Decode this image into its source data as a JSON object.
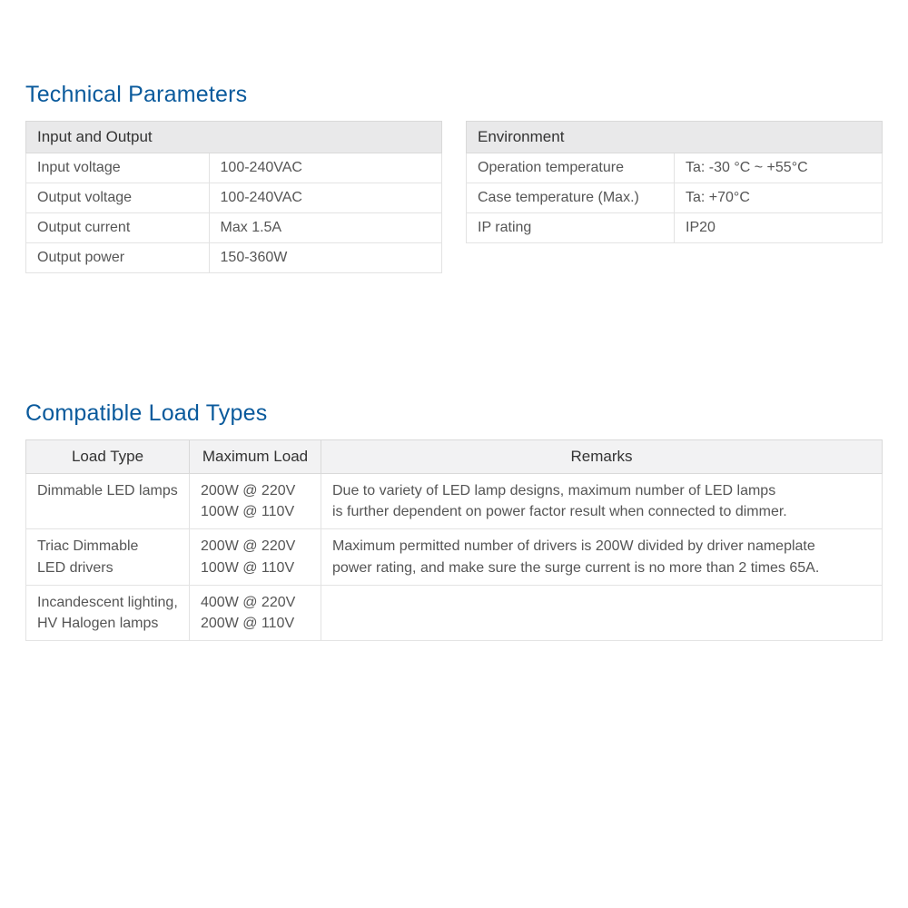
{
  "section1": {
    "title": "Technical Parameters",
    "io": {
      "header": "Input and Output",
      "rows": [
        {
          "label": "Input voltage",
          "value": "100-240VAC"
        },
        {
          "label": "Output voltage",
          "value": "100-240VAC"
        },
        {
          "label": "Output current",
          "value": "Max 1.5A"
        },
        {
          "label": "Output power",
          "value": "150-360W"
        }
      ]
    },
    "env": {
      "header": "Environment",
      "rows": [
        {
          "label": "Operation temperature",
          "value": "Ta: -30 °C ~ +55°C"
        },
        {
          "label": "Case temperature (Max.)",
          "value": "Ta: +70°C"
        },
        {
          "label": "IP rating",
          "value": "IP20"
        }
      ]
    }
  },
  "section2": {
    "title": "Compatible Load Types",
    "columns": [
      "Load Type",
      "Maximum Load",
      "Remarks"
    ],
    "rows": [
      {
        "type": "Dimmable LED lamps",
        "max": "200W @ 220V\n100W @ 110V",
        "remarks": "Due to variety of LED lamp designs, maximum number of LED lamps\nis further dependent on power factor result when connected to dimmer."
      },
      {
        "type": "Triac Dimmable\nLED drivers",
        "max": "200W @ 220V\n100W @ 110V",
        "remarks": "Maximum permitted number of drivers is 200W divided by driver nameplate\npower rating, and make sure the surge current is no more than 2 times 65A."
      },
      {
        "type": "Incandescent lighting,\nHV Halogen lamps",
        "max": "400W @ 220V\n200W @ 110V",
        "remarks": ""
      }
    ]
  },
  "style": {
    "title_color": "#0a5a9c",
    "header_bg": "#e9e9ea",
    "border_color": "#d9d9d9",
    "text_color": "#555555",
    "background": "#ffffff"
  }
}
